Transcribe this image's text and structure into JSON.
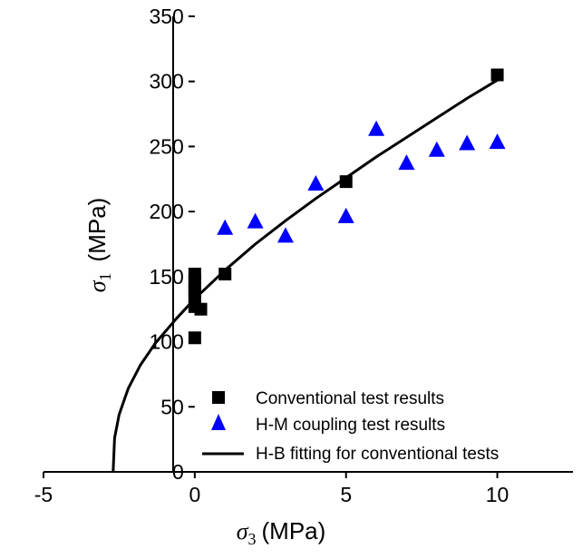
{
  "chart_data": {
    "type": "scatter",
    "xlabel": {
      "symbol": "σ",
      "sub": "3",
      "unit": "(MPa)"
    },
    "ylabel": {
      "symbol": "σ",
      "sub": "1",
      "unit": "(MPa)"
    },
    "xlim": [
      -5,
      12.5
    ],
    "ylim": [
      0,
      350
    ],
    "xticks": [
      "-5",
      "0",
      "5",
      "10"
    ],
    "xtick_values": [
      -5,
      0,
      5,
      10
    ],
    "yticks": [
      "0",
      "50",
      "100",
      "150",
      "200",
      "250",
      "300",
      "350"
    ],
    "ytick_values": [
      0,
      50,
      100,
      150,
      200,
      250,
      300,
      350
    ],
    "legend_position": "bottom-right",
    "series": [
      {
        "name": "Conventional test results",
        "marker": "square",
        "color": "#000000",
        "points": [
          [
            0,
            103
          ],
          [
            0,
            127
          ],
          [
            0,
            133
          ],
          [
            0,
            138
          ],
          [
            0,
            142
          ],
          [
            0,
            147
          ],
          [
            0,
            152
          ],
          [
            0.2,
            125
          ],
          [
            1,
            152
          ],
          [
            5,
            223
          ],
          [
            10,
            305
          ]
        ]
      },
      {
        "name": "H-M coupling test results",
        "marker": "triangle",
        "color": "#0000ff",
        "points": [
          [
            1,
            187
          ],
          [
            2,
            192
          ],
          [
            3,
            181
          ],
          [
            4,
            221
          ],
          [
            5,
            196
          ],
          [
            6,
            263
          ],
          [
            7,
            237
          ],
          [
            8,
            247
          ],
          [
            9,
            252
          ],
          [
            10,
            253
          ]
        ]
      },
      {
        "name": "H-B fitting for conventional tests",
        "marker": "line",
        "color": "#000000",
        "points": [
          [
            -2.7,
            0
          ],
          [
            -2.65,
            26
          ],
          [
            -2.5,
            44
          ],
          [
            -2.2,
            64
          ],
          [
            -1.8,
            82
          ],
          [
            -1.3,
            99
          ],
          [
            -0.6,
            118
          ],
          [
            0,
            133
          ],
          [
            1,
            155
          ],
          [
            2,
            175
          ],
          [
            3,
            193
          ],
          [
            4,
            210
          ],
          [
            5,
            226
          ],
          [
            6,
            242
          ],
          [
            7,
            257
          ],
          [
            8,
            272
          ],
          [
            9,
            287
          ],
          [
            10,
            301
          ]
        ]
      }
    ]
  }
}
